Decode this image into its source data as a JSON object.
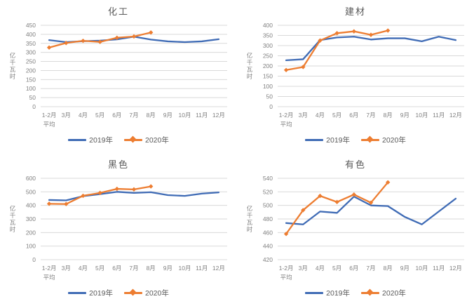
{
  "page": {
    "background": "#ffffff"
  },
  "colors": {
    "series2019": "#3f6bb5",
    "series2020": "#ed7d31",
    "grid": "#d9d9d9",
    "axis_text": "#808080",
    "title_text": "#595959"
  },
  "chart_data": [
    {
      "type": "line",
      "title": "化工",
      "ylabel": "亿千瓦时",
      "ylim": [
        0,
        450
      ],
      "ytick": 50,
      "grid": true,
      "legend_position": "bottom",
      "categories": [
        [
          "1-2月",
          "平均"
        ],
        [
          "3月"
        ],
        [
          "4月"
        ],
        [
          "5月"
        ],
        [
          "6月"
        ],
        [
          "7月"
        ],
        [
          "8月"
        ],
        [
          "9月"
        ],
        [
          "10月"
        ],
        [
          "11月"
        ],
        [
          "12月"
        ]
      ],
      "series": [
        {
          "name": "2019年",
          "values": [
            368,
            357,
            362,
            365,
            372,
            387,
            371,
            361,
            357,
            361,
            373
          ]
        },
        {
          "name": "2020年",
          "values": [
            327,
            352,
            364,
            358,
            381,
            388,
            410
          ]
        }
      ]
    },
    {
      "type": "line",
      "title": "建材",
      "ylabel": "亿千瓦时",
      "ylim": [
        0,
        400
      ],
      "ytick": 50,
      "grid": true,
      "legend_position": "bottom",
      "categories": [
        [
          "1-2月",
          "平均"
        ],
        [
          "3月"
        ],
        [
          "4月"
        ],
        [
          "5月"
        ],
        [
          "6月"
        ],
        [
          "7月"
        ],
        [
          "8月"
        ],
        [
          "9月"
        ],
        [
          "10月"
        ],
        [
          "11月"
        ],
        [
          "12月"
        ]
      ],
      "series": [
        {
          "name": "2019年",
          "values": [
            228,
            233,
            327,
            340,
            344,
            330,
            336,
            336,
            321,
            344,
            327
          ]
        },
        {
          "name": "2020年",
          "values": [
            180,
            195,
            325,
            361,
            370,
            353,
            374
          ]
        }
      ]
    },
    {
      "type": "line",
      "title": "黑色",
      "ylabel": "亿千瓦时",
      "ylim": [
        0,
        600
      ],
      "ytick": 100,
      "grid": true,
      "legend_position": "bottom",
      "categories": [
        [
          "1-2月",
          "平均"
        ],
        [
          "3月"
        ],
        [
          "4月"
        ],
        [
          "5月"
        ],
        [
          "6月"
        ],
        [
          "7月"
        ],
        [
          "8月"
        ],
        [
          "9月"
        ],
        [
          "10月"
        ],
        [
          "11月"
        ],
        [
          "12月"
        ]
      ],
      "series": [
        {
          "name": "2019年",
          "values": [
            440,
            437,
            468,
            483,
            500,
            492,
            497,
            476,
            470,
            487,
            496
          ]
        },
        {
          "name": "2020年",
          "values": [
            412,
            410,
            471,
            492,
            522,
            518,
            540
          ]
        }
      ]
    },
    {
      "type": "line",
      "title": "有色",
      "ylabel": "亿千瓦时",
      "ylim": [
        420,
        540
      ],
      "ytick": 20,
      "grid": true,
      "legend_position": "bottom",
      "categories": [
        [
          "1-2月",
          "平均"
        ],
        [
          "3月"
        ],
        [
          "4月"
        ],
        [
          "5月"
        ],
        [
          "6月"
        ],
        [
          "7月"
        ],
        [
          "8月"
        ],
        [
          "9月"
        ],
        [
          "10月"
        ],
        [
          "11月"
        ],
        [
          "12月"
        ]
      ],
      "series": [
        {
          "name": "2019年",
          "values": [
            474,
            472,
            491,
            489,
            513,
            500,
            499,
            483,
            472,
            491,
            510
          ]
        },
        {
          "name": "2020年",
          "values": [
            458,
            493,
            514,
            505,
            516,
            504,
            534
          ]
        }
      ]
    }
  ]
}
